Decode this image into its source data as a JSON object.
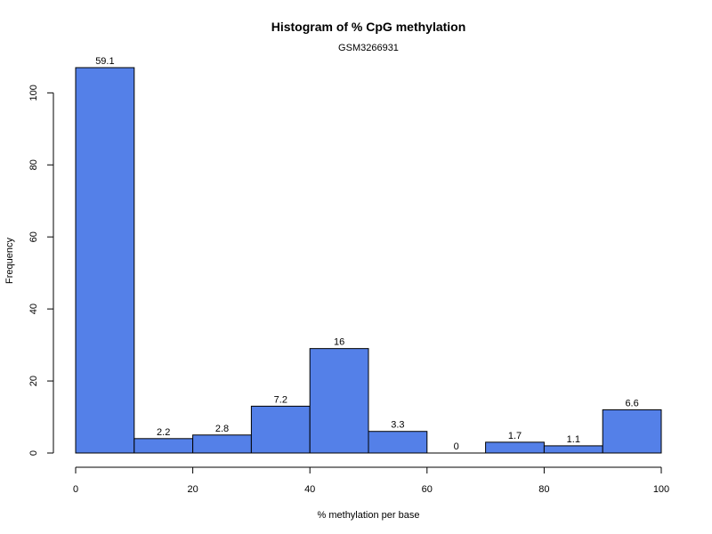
{
  "chart_data": {
    "type": "bar",
    "title": "Histogram of % CpG methylation",
    "subtitle": "GSM3266931",
    "xlabel": "% methylation per base",
    "ylabel": "Frequency",
    "bins": [
      {
        "x0": 0,
        "x1": 10,
        "count": 107,
        "label": "59.1"
      },
      {
        "x0": 10,
        "x1": 20,
        "count": 4,
        "label": "2.2"
      },
      {
        "x0": 20,
        "x1": 30,
        "count": 5,
        "label": "2.8"
      },
      {
        "x0": 30,
        "x1": 40,
        "count": 13,
        "label": "7.2"
      },
      {
        "x0": 40,
        "x1": 50,
        "count": 29,
        "label": "16"
      },
      {
        "x0": 50,
        "x1": 60,
        "count": 6,
        "label": "3.3"
      },
      {
        "x0": 60,
        "x1": 70,
        "count": 0,
        "label": "0"
      },
      {
        "x0": 70,
        "x1": 80,
        "count": 3,
        "label": "1.7"
      },
      {
        "x0": 80,
        "x1": 90,
        "count": 2,
        "label": "1.1"
      },
      {
        "x0": 90,
        "x1": 100,
        "count": 12,
        "label": "6.6"
      }
    ],
    "xlim": [
      0,
      100
    ],
    "ylim": [
      0,
      107
    ],
    "xticks": [
      "0",
      "20",
      "40",
      "60",
      "80",
      "100"
    ],
    "yticks": [
      "0",
      "20",
      "40",
      "60",
      "80",
      "100"
    ],
    "bar_color": "#5480e8",
    "grid": false,
    "legend": "none"
  }
}
